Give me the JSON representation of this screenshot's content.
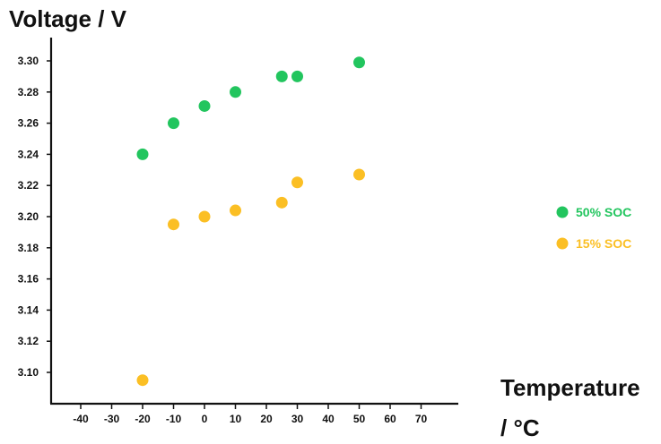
{
  "chart_data": {
    "type": "scatter",
    "ylabel": "Voltage / V",
    "xlabel_line1": "Temperature",
    "xlabel_line2": "/ °C",
    "xticks": [
      -40,
      -30,
      -20,
      -10,
      0,
      10,
      20,
      30,
      40,
      50,
      60,
      70
    ],
    "yticks": [
      "3.10",
      "3.12",
      "3.14",
      "3.16",
      "3.18",
      "3.20",
      "3.22",
      "3.24",
      "3.26",
      "3.28",
      "3.30"
    ],
    "xlim": [
      -45,
      85
    ],
    "ylim": [
      3.08,
      3.32
    ],
    "grid": false,
    "legend_position": "right",
    "series": [
      {
        "name": "50% SOC",
        "color": "#22c55e",
        "points": [
          {
            "x": -20,
            "y": 3.24
          },
          {
            "x": -10,
            "y": 3.26
          },
          {
            "x": 0,
            "y": 3.271
          },
          {
            "x": 10,
            "y": 3.28
          },
          {
            "x": 25,
            "y": 3.29
          },
          {
            "x": 30,
            "y": 3.29
          },
          {
            "x": 50,
            "y": 3.299
          }
        ]
      },
      {
        "name": "15% SOC",
        "color": "#fbbf24",
        "points": [
          {
            "x": -20,
            "y": 3.095
          },
          {
            "x": -10,
            "y": 3.195
          },
          {
            "x": 0,
            "y": 3.2
          },
          {
            "x": 10,
            "y": 3.204
          },
          {
            "x": 25,
            "y": 3.209
          },
          {
            "x": 30,
            "y": 3.222
          },
          {
            "x": 50,
            "y": 3.227
          }
        ]
      }
    ]
  }
}
